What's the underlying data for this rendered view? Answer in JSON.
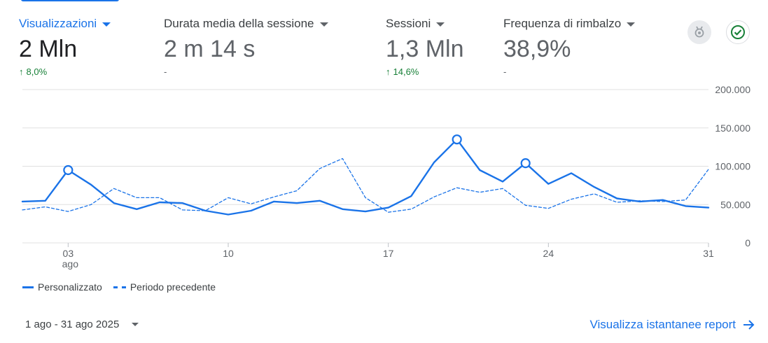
{
  "metrics": [
    {
      "title": "Visualizzazioni",
      "value": "2 Mln",
      "change": "8,0%",
      "trend": "up"
    },
    {
      "title": "Durata media della sessione",
      "value": "2 m 14 s",
      "change": "-",
      "trend": "none"
    },
    {
      "title": "Sessioni",
      "value": "1,3 Mln",
      "change": "14,6%",
      "trend": "up"
    },
    {
      "title": "Frequenza di rimbalzo",
      "value": "38,9%",
      "change": "-",
      "trend": "none"
    }
  ],
  "icons": {
    "insights": "badge-icon",
    "status": "check-circle-icon"
  },
  "legend": {
    "current": "Personalizzato",
    "previous": "Periodo precedente"
  },
  "date_range": "1 ago - 31 ago 2025",
  "report_link": "Visualizza istantanee report",
  "colors": {
    "accent": "#1a73e8",
    "positive": "#188038",
    "grid": "#e0e0e0"
  },
  "chart_data": {
    "type": "line",
    "x_labels": [
      {
        "day": 3,
        "text": "03",
        "sub": "ago"
      },
      {
        "day": 10,
        "text": "10"
      },
      {
        "day": 17,
        "text": "17"
      },
      {
        "day": 24,
        "text": "24"
      },
      {
        "day": 31,
        "text": "31"
      }
    ],
    "y_ticks": [
      "200.000",
      "150.000",
      "100.000",
      "50.000",
      "0"
    ],
    "ylim": [
      0,
      200000
    ],
    "xlim": [
      1,
      31
    ],
    "series": [
      {
        "name": "Personalizzato",
        "style": "solid",
        "values": [
          54000,
          55000,
          95000,
          76000,
          52000,
          44000,
          53000,
          52000,
          42000,
          37000,
          42000,
          54000,
          52000,
          55000,
          44000,
          41000,
          46000,
          61000,
          105000,
          135000,
          95000,
          80000,
          104000,
          77000,
          91000,
          73000,
          58000,
          54000,
          56000,
          48000,
          46000
        ],
        "highlight_days": [
          3,
          20,
          23
        ]
      },
      {
        "name": "Periodo precedente",
        "style": "dashed",
        "values": [
          43000,
          47000,
          41000,
          50000,
          71000,
          59000,
          59000,
          43000,
          42000,
          59000,
          51000,
          60000,
          68000,
          97000,
          110000,
          59000,
          40000,
          44000,
          60000,
          72000,
          66000,
          71000,
          49000,
          45000,
          57000,
          64000,
          53000,
          55000,
          54000,
          56000,
          96000
        ]
      }
    ]
  }
}
